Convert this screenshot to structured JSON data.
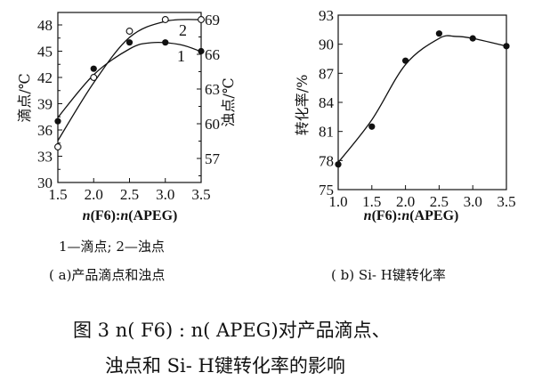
{
  "chart_data": [
    {
      "id": "a",
      "type": "line",
      "title": "(a)产品滴点和浊点",
      "xlabel": "n(F6):n(APEG)",
      "ylabel_left": "滴点/℃",
      "ylabel_right": "浊点/℃",
      "x": [
        1.5,
        2.0,
        2.5,
        3.0,
        3.5
      ],
      "xticks": [
        "1.5",
        "2.0",
        "2.5",
        "3.0",
        "3.5"
      ],
      "yticks_left": [
        "30",
        "33",
        "36",
        "39",
        "42",
        "45",
        "48"
      ],
      "yticks_right": [
        "57",
        "60",
        "63",
        "66",
        "69"
      ],
      "ylim_left": [
        30,
        49.5
      ],
      "ylim_right": [
        55,
        70
      ],
      "legend": "1—滴点; 2—浊点",
      "series": [
        {
          "name": "1",
          "label": "滴点",
          "axis": "left",
          "marker": "filled-circle",
          "values": [
            37.0,
            43.0,
            46.0,
            46.0,
            45.0
          ]
        },
        {
          "name": "2",
          "label": "浊点",
          "axis": "right",
          "marker": "open-circle",
          "values": [
            58.0,
            64.0,
            68.0,
            69.0,
            69.0
          ]
        }
      ],
      "grid": false
    },
    {
      "id": "b",
      "type": "line",
      "title": "(b) Si-H键转化率",
      "xlabel": "n(F6):n(APEG)",
      "ylabel": "转化率/%",
      "x": [
        1.0,
        1.5,
        2.0,
        2.5,
        3.0,
        3.5
      ],
      "xticks": [
        "1.0",
        "1.5",
        "2.0",
        "2.5",
        "3.0",
        "3.5"
      ],
      "yticks": [
        "75",
        "78",
        "81",
        "84",
        "87",
        "90",
        "93"
      ],
      "ylim": [
        75,
        93
      ],
      "series": [
        {
          "name": "转化率",
          "marker": "filled-circle",
          "values": [
            77.6,
            81.5,
            88.3,
            91.1,
            90.6,
            89.8
          ]
        }
      ],
      "grid": false
    }
  ],
  "captions": {
    "legend_a": "1—滴点; 2—浊点",
    "sub_a": "( a)产品滴点和浊点",
    "sub_b": "( b) Si- H键转化率",
    "figure_line1": "图  3    n( F6) : n( APEG)对产品滴点、",
    "figure_line2": "浊点和  Si- H键转化率的影响"
  },
  "labels": {
    "curve1": "1",
    "curve2": "2",
    "xlabel_n1": "n",
    "xlabel_mid": "(F6):",
    "xlabel_n2": "n",
    "xlabel_end": "(APEG)",
    "ylab_a_left": "滴点/℃",
    "ylab_a_right": "浊点/℃",
    "ylab_b": "转化率/%"
  }
}
